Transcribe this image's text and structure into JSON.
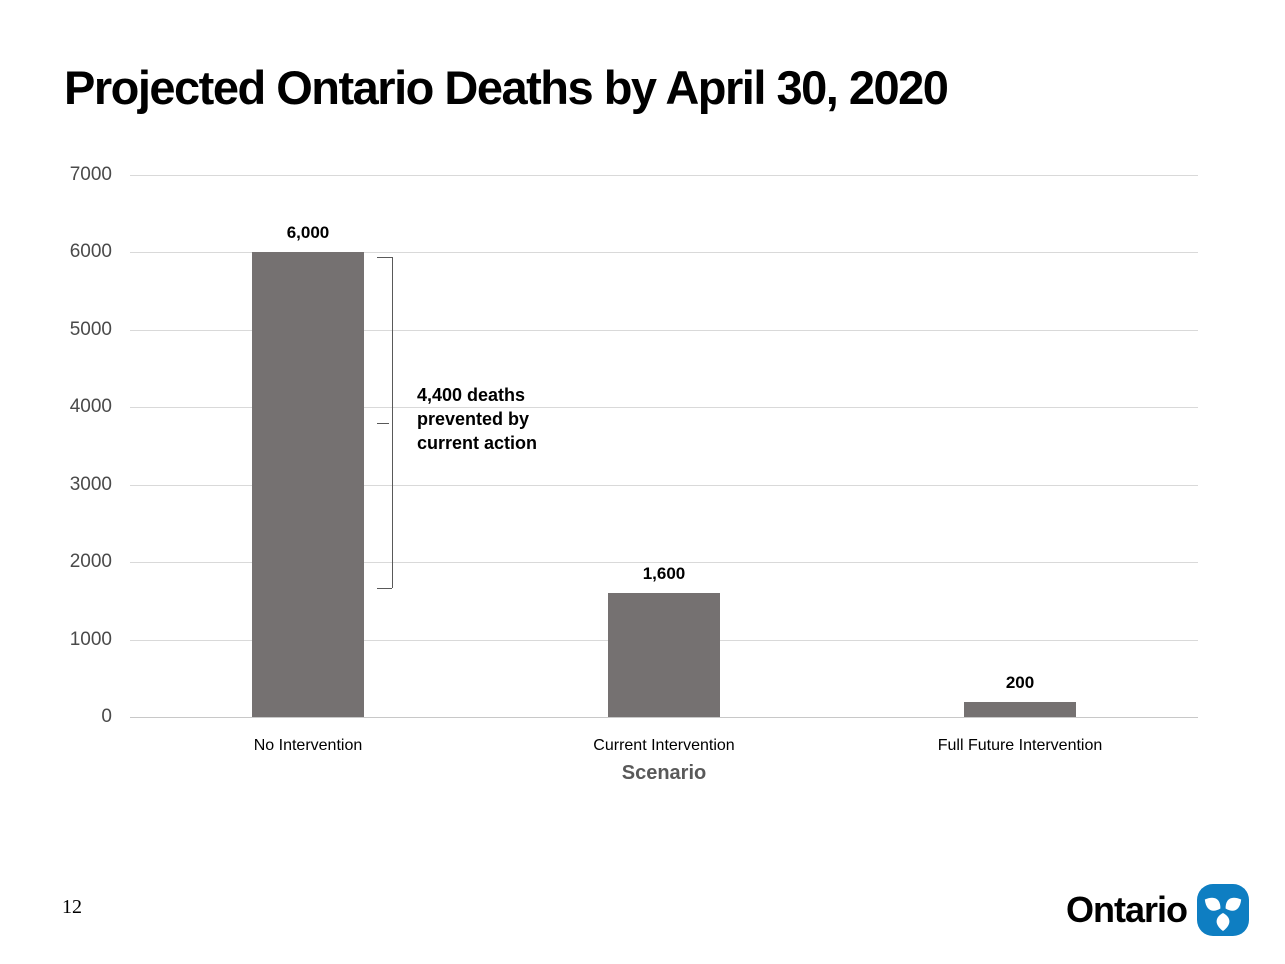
{
  "slide": {
    "title": "Projected Ontario Deaths by April 30, 2020"
  },
  "chart_data": {
    "type": "bar",
    "title": "Projected Ontario Deaths by April 30, 2020",
    "categories": [
      "No Intervention",
      "Current Intervention",
      "Full Future Intervention"
    ],
    "values": [
      6000,
      1600,
      200
    ],
    "data_labels": [
      "6,000",
      "1,600",
      "200"
    ],
    "xlabel": "Scenario",
    "ylabel": "",
    "ylim": [
      0,
      7000
    ],
    "yticks": [
      0,
      1000,
      2000,
      3000,
      4000,
      5000,
      6000,
      7000
    ],
    "grid": true,
    "legend": false,
    "bar_color": "#757171",
    "gridline_color": "#d9d9d9",
    "annotation": {
      "text_lines": [
        "4,400 deaths",
        "prevented by",
        "current action"
      ],
      "bracket_from_value": 6000,
      "bracket_to_value": 1600,
      "meaning": "difference between No Intervention and Current Intervention bars"
    }
  },
  "footer": {
    "page_number": "12",
    "logo_text": "Ontario",
    "logo_blue": "#0e7ec2"
  }
}
